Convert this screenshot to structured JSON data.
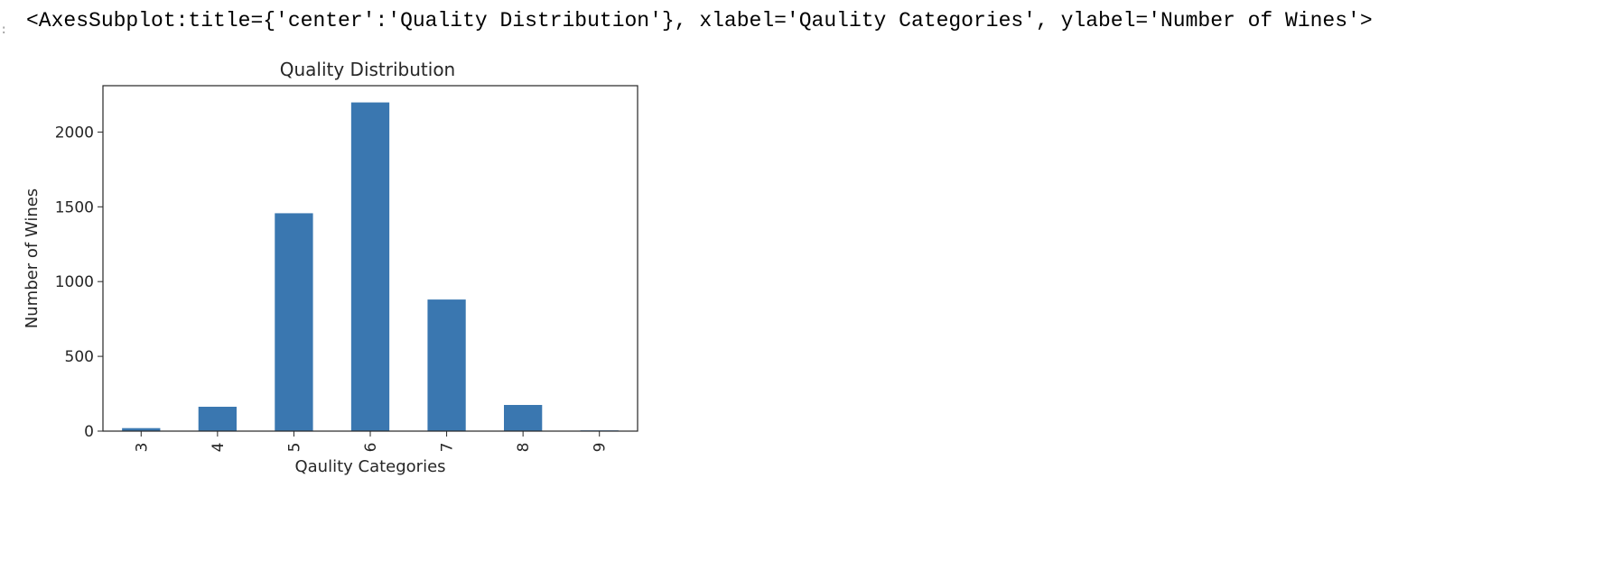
{
  "cell": {
    "prompt_marker": ":",
    "output_text": "<AxesSubplot:title={'center':'Quality Distribution'}, xlabel='Qaulity Categories', ylabel='Number of Wines'>"
  },
  "chart_data": {
    "type": "bar",
    "title": "Quality Distribution",
    "xlabel": "Qaulity Categories",
    "ylabel": "Number of Wines",
    "categories": [
      "3",
      "4",
      "5",
      "6",
      "7",
      "8",
      "9"
    ],
    "values": [
      20,
      163,
      1457,
      2198,
      880,
      175,
      5
    ],
    "ylim": [
      0,
      2310
    ],
    "yticks": [
      0,
      500,
      1000,
      1500,
      2000
    ],
    "ytick_labels": [
      "0",
      "500",
      "1000",
      "1500",
      "2000"
    ],
    "xtick_rotation": "vertical",
    "bar_color": "#3a77b0",
    "grid": false,
    "legend": "none"
  }
}
